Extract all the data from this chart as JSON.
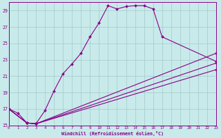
{
  "background_color": "#c8eaea",
  "grid_color": "#aacece",
  "line_color": "#880088",
  "xlabel": "Windchill (Refroidissement éolien,°C)",
  "xlim": [
    0,
    23
  ],
  "ylim": [
    15,
    30
  ],
  "yticks": [
    15,
    17,
    19,
    21,
    23,
    25,
    27,
    29
  ],
  "xticks": [
    0,
    1,
    2,
    3,
    4,
    5,
    6,
    7,
    8,
    9,
    10,
    11,
    12,
    13,
    14,
    15,
    16,
    17,
    18,
    19,
    20,
    21,
    22,
    23
  ],
  "line1_x": [
    0,
    1,
    2,
    3,
    4,
    5,
    6,
    7,
    8,
    9,
    10,
    11,
    12,
    13,
    14,
    15,
    16,
    17,
    23
  ],
  "line1_y": [
    17.0,
    16.5,
    15.3,
    15.2,
    16.8,
    19.2,
    21.3,
    22.5,
    23.8,
    25.8,
    27.5,
    29.6,
    29.2,
    29.5,
    29.6,
    29.6,
    29.2,
    25.8,
    22.8
  ],
  "line2_x": [
    0,
    2,
    3,
    23
  ],
  "line2_y": [
    17.0,
    15.3,
    15.2,
    23.8
  ],
  "line3_x": [
    0,
    2,
    3,
    23
  ],
  "line3_y": [
    17.0,
    15.3,
    15.2,
    22.6
  ],
  "line4_x": [
    0,
    2,
    3,
    23
  ],
  "line4_y": [
    17.0,
    15.3,
    15.2,
    21.8
  ]
}
